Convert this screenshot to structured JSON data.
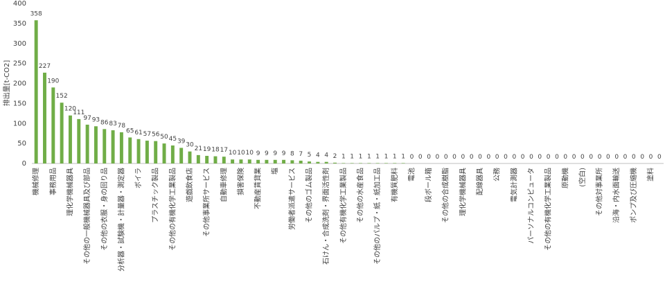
{
  "chart_data": {
    "type": "bar",
    "y_label": "排出量[t-CO2]",
    "categories": [
      "機械修理",
      null,
      "事務用品",
      null,
      "理化学機械器具",
      null,
      "その他の一般機械器具及び部品",
      null,
      "その他の衣服・身の回り品",
      null,
      "分析器・試験機・計量器・測定器",
      null,
      "ボイラ",
      null,
      "プラスチック製品",
      null,
      "その他の有機化学工業製品",
      null,
      "遊戯飲食店",
      null,
      "その他事業所サービス",
      null,
      "自動車修理",
      null,
      "損害保険",
      null,
      "不動産賃貸業",
      null,
      "塩",
      null,
      "労働者派遣サービス",
      null,
      "その他のゴム製品",
      null,
      "石けん・合成洗剤・界面活性剤",
      null,
      "その他有機化学工業製品",
      null,
      "その他の水産食品",
      null,
      "その他のパルプ・紙・紙加工品",
      null,
      "有機質肥料",
      null,
      "電池",
      null,
      "段ボール箱",
      null,
      "その他の合成樹脂",
      null,
      "理化学機械器具",
      null,
      "配線器具",
      null,
      "公務",
      null,
      "電気計測器",
      null,
      "パーソナルコンピュータ",
      null,
      "その他の有機化学工業製品",
      null,
      "原動機",
      null,
      "(空白)",
      null,
      "その他対事業所",
      null,
      "沿海・内水面輸送",
      null,
      "ポンプ及び圧縮機",
      null,
      "塗料",
      null
    ],
    "values": [
      358,
      227,
      190,
      152,
      120,
      111,
      97,
      93,
      86,
      83,
      78,
      65,
      61,
      57,
      56,
      50,
      45,
      39,
      30,
      21,
      19,
      18,
      17,
      10,
      10,
      10,
      9,
      9,
      9,
      9,
      8,
      7,
      5,
      4,
      4,
      2,
      1,
      1,
      1,
      1,
      1,
      1,
      1,
      1,
      0,
      0,
      0,
      0,
      0,
      0,
      0,
      0,
      0,
      0,
      0,
      0,
      0,
      0,
      0,
      0,
      0,
      0,
      0,
      0,
      0,
      0,
      0,
      0,
      0,
      0,
      0,
      0,
      0,
      0
    ],
    "color": "#70ad47",
    "ylim": [
      0,
      400
    ],
    "yticks": [
      0,
      50,
      100,
      150,
      200,
      250,
      300,
      350,
      400
    ],
    "grid": false
  }
}
